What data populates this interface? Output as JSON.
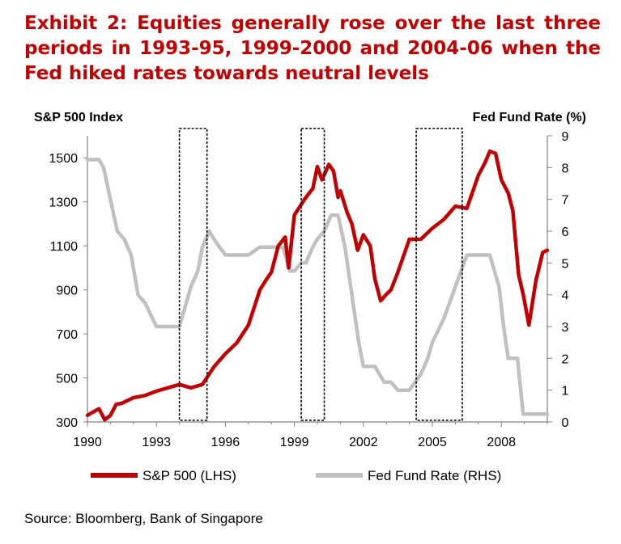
{
  "title": "Exhibit 2: Equities generally rose over the last three periods in 1993-95, 1999-2000 and 2004-06 when the Fed hiked rates towards neutral levels",
  "source": "Source: Bloomberg, Bank of Singapore",
  "chart_data": {
    "type": "line",
    "y_left_label": "S&P 500 Index",
    "y_right_label": "Fed Fund Rate (%)",
    "x_ticks": [
      "1990",
      "1993",
      "1996",
      "1999",
      "2002",
      "2005",
      "2008"
    ],
    "y_left_ticks": [
      "300",
      "500",
      "700",
      "900",
      "1100",
      "1300",
      "1500"
    ],
    "y_right_ticks": [
      "0",
      "1",
      "2",
      "3",
      "4",
      "5",
      "6",
      "7",
      "8",
      "9"
    ],
    "x_range": [
      1990,
      2010
    ],
    "y_left_range": [
      300,
      1600
    ],
    "y_right_range": [
      0,
      9
    ],
    "legend_position": "bottom",
    "colors": {
      "sp500": "#c00000",
      "fed": "#c0c0c0",
      "title": "#c00000"
    },
    "series": [
      {
        "name": "S&P 500 (LHS)",
        "axis": "left",
        "x": [
          1990.0,
          1990.25,
          1990.5,
          1990.75,
          1991.0,
          1991.25,
          1991.5,
          1992.0,
          1992.5,
          1993.0,
          1993.5,
          1994.0,
          1994.5,
          1995.0,
          1995.5,
          1996.0,
          1996.5,
          1997.0,
          1997.5,
          1997.8,
          1998.0,
          1998.3,
          1998.6,
          1998.75,
          1999.0,
          1999.5,
          1999.8,
          2000.0,
          2000.2,
          2000.5,
          2000.7,
          2000.9,
          2001.0,
          2001.3,
          2001.5,
          2001.75,
          2002.0,
          2002.3,
          2002.5,
          2002.75,
          2003.0,
          2003.2,
          2003.5,
          2004.0,
          2004.5,
          2005.0,
          2005.5,
          2006.0,
          2006.5,
          2007.0,
          2007.3,
          2007.5,
          2007.75,
          2008.0,
          2008.3,
          2008.5,
          2008.75,
          2008.95,
          2009.2,
          2009.5,
          2009.8,
          2010.0
        ],
        "y": [
          330,
          345,
          360,
          310,
          330,
          380,
          385,
          410,
          420,
          440,
          455,
          470,
          455,
          470,
          550,
          610,
          660,
          740,
          900,
          950,
          980,
          1100,
          1140,
          1000,
          1240,
          1320,
          1360,
          1460,
          1400,
          1470,
          1440,
          1320,
          1350,
          1250,
          1200,
          1080,
          1150,
          1100,
          950,
          850,
          880,
          900,
          980,
          1130,
          1130,
          1180,
          1220,
          1280,
          1270,
          1420,
          1480,
          1530,
          1520,
          1400,
          1340,
          1260,
          970,
          880,
          740,
          940,
          1070,
          1080
        ]
      },
      {
        "name": "Fed Fund Rate (RHS)",
        "axis": "right",
        "x": [
          1990.0,
          1990.5,
          1990.7,
          1991.0,
          1991.3,
          1991.6,
          1991.9,
          1992.2,
          1992.5,
          1993.0,
          1993.5,
          1994.0,
          1994.2,
          1994.5,
          1994.8,
          1995.0,
          1995.3,
          1995.5,
          1996.0,
          1996.5,
          1997.0,
          1997.5,
          1998.0,
          1998.5,
          1998.8,
          1999.0,
          1999.3,
          1999.5,
          1999.8,
          2000.0,
          2000.3,
          2000.6,
          2000.9,
          2001.2,
          2001.5,
          2001.8,
          2002.0,
          2002.5,
          2002.9,
          2003.2,
          2003.5,
          2004.0,
          2004.5,
          2004.8,
          2005.0,
          2005.5,
          2006.0,
          2006.5,
          2007.0,
          2007.5,
          2007.7,
          2007.9,
          2008.1,
          2008.3,
          2008.7,
          2008.95,
          2009.2,
          2009.5,
          2010.0
        ],
        "y": [
          8.25,
          8.25,
          8.0,
          7.0,
          6.0,
          5.75,
          5.25,
          4.0,
          3.75,
          3.0,
          3.0,
          3.0,
          3.5,
          4.25,
          4.75,
          5.5,
          6.0,
          5.75,
          5.25,
          5.25,
          5.25,
          5.5,
          5.5,
          5.5,
          4.75,
          4.75,
          5.0,
          5.0,
          5.5,
          5.75,
          6.0,
          6.5,
          6.5,
          5.5,
          4.0,
          2.5,
          1.75,
          1.75,
          1.25,
          1.25,
          1.0,
          1.0,
          1.5,
          2.0,
          2.5,
          3.25,
          4.25,
          5.25,
          5.25,
          5.25,
          4.75,
          4.25,
          3.0,
          2.0,
          2.0,
          0.25,
          0.25,
          0.25,
          0.25
        ]
      }
    ],
    "highlight_periods": [
      [
        1994.0,
        1995.2
      ],
      [
        1999.3,
        2000.3
      ],
      [
        2004.3,
        2006.3
      ]
    ]
  }
}
